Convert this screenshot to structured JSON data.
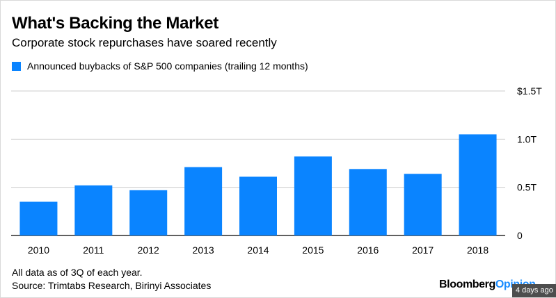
{
  "title": "What's Backing the Market",
  "subtitle": "Corporate stock repurchases have soared recently",
  "legend_label": "Announced buybacks of S&P 500 companies (trailing 12 months)",
  "footnote": "All data as of 3Q of each year.",
  "source": "Source: Trimtabs Research, Birinyi Associates",
  "brand": {
    "main": "Bloomberg",
    "accent": "Opinion"
  },
  "time_badge": "4 days ago",
  "colors": {
    "bar": "#0a84ff",
    "grid": "#cccccc",
    "axis": "#000000"
  },
  "chart_data": {
    "type": "bar",
    "title": "What's Backing the Market",
    "subtitle": "Corporate stock repurchases have soared recently",
    "categories": [
      "2010",
      "2011",
      "2012",
      "2013",
      "2014",
      "2015",
      "2016",
      "2017",
      "2018"
    ],
    "series": [
      {
        "name": "Announced buybacks of S&P 500 companies (trailing 12 months)",
        "values": [
          0.35,
          0.52,
          0.47,
          0.71,
          0.61,
          0.82,
          0.69,
          0.64,
          1.05
        ]
      }
    ],
    "ylim": [
      0,
      1.5
    ],
    "yticks": [
      {
        "value": 0,
        "label": "0"
      },
      {
        "value": 0.5,
        "label": "0.5T"
      },
      {
        "value": 1.0,
        "label": "1.0T"
      },
      {
        "value": 1.5,
        "label": "$1.5T"
      }
    ],
    "y_axis_position": "right",
    "grid": true,
    "legend_position": "top-left"
  }
}
